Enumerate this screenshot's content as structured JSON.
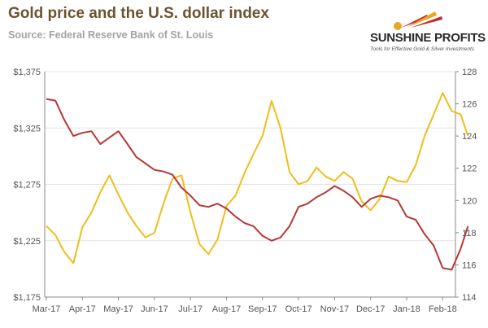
{
  "header": {
    "title": "Gold price and the U.S. dollar index",
    "subtitle": "Source: Federal Reserve Bank of St. Louis"
  },
  "logo": {
    "name": "SUNSHINE PROFITS",
    "tagline": "Tools for Effective Gold & Silver Investments"
  },
  "colors": {
    "gold": "#f0bd1c",
    "dollar": "#b83737",
    "grid": "#e4e4e4",
    "axis": "#8a8a8a",
    "logo_red": "#c8262c",
    "logo_gold": "#e8a823"
  },
  "chart_data": {
    "type": "line",
    "title": "Gold price and the U.S. dollar index",
    "subtitle": "Source: Federal Reserve Bank of St. Louis",
    "x_ticks": [
      "Mar-17",
      "Apr-17",
      "May-17",
      "Jun-17",
      "Jul-17",
      "Aug-17",
      "Sep-17",
      "Oct-17",
      "Nov-17",
      "Dec-17",
      "Jan-18",
      "Feb-18"
    ],
    "y_left": {
      "ticks": [
        "$1,175",
        "$1,225",
        "$1,275",
        "$1,325",
        "$1,375"
      ],
      "range": [
        1175,
        1375
      ]
    },
    "y_right": {
      "ticks": [
        "114",
        "116",
        "118",
        "120",
        "122",
        "124",
        "126",
        "128"
      ],
      "range": [
        114,
        128
      ]
    },
    "grid": true,
    "legend": "none",
    "series": [
      {
        "axis": "left",
        "color": "#f0bd1c",
        "x": [
          0,
          0.25,
          0.5,
          0.75,
          1.0,
          1.25,
          1.5,
          1.75,
          2.0,
          2.25,
          2.5,
          2.75,
          3.0,
          3.25,
          3.5,
          3.75,
          4.0,
          4.25,
          4.5,
          4.75,
          5.0,
          5.25,
          5.5,
          5.75,
          6.0,
          6.25,
          6.5,
          6.75,
          7.0,
          7.25,
          7.5,
          7.75,
          8.0,
          8.25,
          8.5,
          8.75,
          9.0,
          9.25,
          9.5,
          9.75,
          10.0,
          10.25,
          10.5,
          10.75,
          11.0,
          11.25,
          11.5,
          11.7
        ],
        "values": [
          1238,
          1230,
          1215,
          1205,
          1237,
          1250,
          1268,
          1283,
          1266,
          1250,
          1238,
          1228,
          1232,
          1258,
          1280,
          1283,
          1250,
          1222,
          1213,
          1226,
          1256,
          1265,
          1285,
          1302,
          1318,
          1349,
          1325,
          1286,
          1275,
          1278,
          1290,
          1282,
          1278,
          1286,
          1280,
          1260,
          1252,
          1262,
          1282,
          1278,
          1277,
          1292,
          1318,
          1337,
          1356,
          1340,
          1337,
          1318
        ]
      },
      {
        "axis": "right",
        "color": "#b83737",
        "x": [
          0,
          0.25,
          0.5,
          0.75,
          1.0,
          1.25,
          1.5,
          1.75,
          2.0,
          2.25,
          2.5,
          2.75,
          3.0,
          3.25,
          3.5,
          3.75,
          4.0,
          4.25,
          4.5,
          4.75,
          5.0,
          5.25,
          5.5,
          5.75,
          6.0,
          6.25,
          6.5,
          6.75,
          7.0,
          7.25,
          7.5,
          7.75,
          8.0,
          8.25,
          8.5,
          8.75,
          9.0,
          9.25,
          9.5,
          9.75,
          10.0,
          10.25,
          10.5,
          10.75,
          11.0,
          11.25,
          11.5,
          11.7
        ],
        "values": [
          126.3,
          126.2,
          125.0,
          124.0,
          124.2,
          124.3,
          123.5,
          123.9,
          124.3,
          123.5,
          122.7,
          122.3,
          121.9,
          121.8,
          121.6,
          120.8,
          120.3,
          119.7,
          119.6,
          119.8,
          119.5,
          119.0,
          118.6,
          118.4,
          117.8,
          117.5,
          117.7,
          118.4,
          119.6,
          119.8,
          120.2,
          120.5,
          120.9,
          120.6,
          120.2,
          119.6,
          120.1,
          120.3,
          120.2,
          120.0,
          119.0,
          118.8,
          117.9,
          117.2,
          115.8,
          115.7,
          117.0,
          118.4
        ]
      }
    ]
  }
}
